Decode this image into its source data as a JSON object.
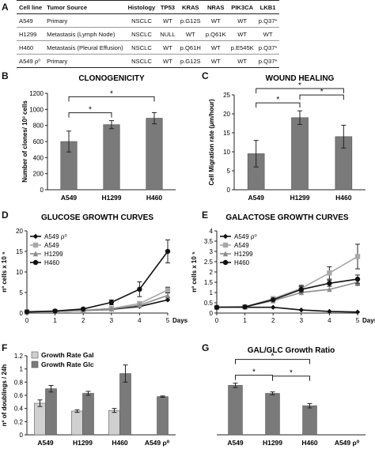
{
  "panels": {
    "A": "A",
    "B": "B",
    "C": "C",
    "D": "D",
    "E": "E",
    "F": "F",
    "G": "G"
  },
  "table": {
    "headers": [
      "Cell line",
      "Tumor Source",
      "Histology",
      "TP53",
      "KRAS",
      "NRAS",
      "PIK3CA",
      "LKB1"
    ],
    "rows": [
      {
        "line": "A549",
        "source": "Primary",
        "histology": "NSCLC",
        "tp53": "WT",
        "kras": "p.G12S",
        "nras": "WT",
        "pik3ca": "WT",
        "lkb1": "p.Q37*"
      },
      {
        "line": "H1299",
        "source": "Metastasis (Lymph Node)",
        "histology": "NSCLC",
        "tp53": "NULL",
        "kras": "WT",
        "nras": "p.Q61K",
        "pik3ca": "WT",
        "lkb1": "WT"
      },
      {
        "line": "H460",
        "source": "Metastasis (Pleural Effusion)",
        "histology": "NSCLC",
        "tp53": "WT",
        "kras": "p.Q61H",
        "nras": "WT",
        "pik3ca": "p.E545K",
        "lkb1": "p.Q37*"
      },
      {
        "line": "A549 ρ⁰",
        "source": "Primary",
        "histology": "NSCLC",
        "tp53": "WT",
        "kras": "p.G12S",
        "nras": "WT",
        "pik3ca": "WT",
        "lkb1": "p.Q37*"
      }
    ]
  },
  "colors": {
    "dark": "#7a7a7a",
    "light": "#d0d0d0",
    "black": "#111111",
    "grey_line": "#a8a8a8",
    "mid_line": "#8c8c8c"
  },
  "chart_data": [
    {
      "id": "B",
      "type": "bar",
      "title": "CLONOGENICITY",
      "ylabel": "Number of clones/ 10³ cells",
      "categories": [
        "A549",
        "H1299",
        "H460"
      ],
      "values": [
        600,
        810,
        890
      ],
      "errors": [
        130,
        50,
        70
      ],
      "ylim": [
        0,
        1200
      ],
      "yticks": [
        "0",
        "200",
        "400",
        "600",
        "800",
        "1000",
        "1200"
      ],
      "significance": [
        {
          "from": 0,
          "to": 1,
          "label": "*"
        },
        {
          "from": 0,
          "to": 2,
          "label": "*"
        }
      ]
    },
    {
      "id": "C",
      "type": "bar",
      "title": "WOUND HEALING",
      "ylabel": "Cell Migration rate (μm/hour)",
      "categories": [
        "A549",
        "H1299",
        "H460"
      ],
      "values": [
        9.5,
        19,
        14
      ],
      "errors": [
        3.5,
        1.8,
        3
      ],
      "ylim": [
        0,
        25
      ],
      "yticks": [
        "0",
        "5",
        "10",
        "15",
        "20",
        "25"
      ],
      "significance": [
        {
          "from": 0,
          "to": 1,
          "label": "*"
        },
        {
          "from": 1,
          "to": 2,
          "label": "*"
        },
        {
          "from": 0,
          "to": 2,
          "label": "*"
        }
      ]
    },
    {
      "id": "D",
      "type": "line",
      "title": "GLUCOSE GROWTH CURVES",
      "ylabel": "nº cells x 10 ⁵",
      "xlabel": "Days",
      "x": [
        0,
        1,
        2,
        3,
        4,
        5
      ],
      "xticks": [
        "0",
        "1",
        "2",
        "3",
        "4",
        "5"
      ],
      "ylim": [
        0,
        20
      ],
      "yticks": [
        "0",
        "5",
        "10",
        "15",
        "20"
      ],
      "legend": "top-left",
      "series": [
        {
          "name": "A549 ρ⁰",
          "marker": "diamond",
          "color": "#111111",
          "values": [
            0.3,
            0.4,
            0.6,
            0.9,
            1.6,
            3.2
          ],
          "errors": [
            0,
            0,
            0,
            0,
            0,
            0
          ]
        },
        {
          "name": "A549",
          "marker": "square",
          "color": "#a8a8a8",
          "values": [
            0.3,
            0.4,
            0.7,
            1.1,
            2.3,
            5.6
          ],
          "errors": [
            0,
            0,
            0,
            0,
            0.5,
            0.7
          ]
        },
        {
          "name": "H1299",
          "marker": "triangle",
          "color": "#8c8c8c",
          "values": [
            0.3,
            0.4,
            0.6,
            1.0,
            1.9,
            4.3
          ],
          "errors": [
            0,
            0,
            0,
            0,
            0,
            0.6
          ]
        },
        {
          "name": "H460",
          "marker": "circle",
          "color": "#111111",
          "values": [
            0.3,
            0.5,
            1.0,
            2.6,
            5.8,
            15
          ],
          "errors": [
            0,
            0,
            0,
            0.6,
            1.8,
            2.8
          ]
        }
      ]
    },
    {
      "id": "E",
      "type": "line",
      "title": "GALACTOSE GROWTH CURVES",
      "ylabel": "nº cells x 10 ⁵",
      "xlabel": "Days",
      "x": [
        0,
        1,
        2,
        3,
        4,
        5
      ],
      "xticks": [
        "0",
        "1",
        "2",
        "3",
        "4",
        "5"
      ],
      "ylim": [
        0,
        4
      ],
      "yticks": [
        "0",
        "0.5",
        "1",
        "1.5",
        "2",
        "2.5",
        "3",
        "3.5",
        "4"
      ],
      "legend": "top-left",
      "series": [
        {
          "name": "A549 ρ⁰",
          "marker": "diamond",
          "color": "#111111",
          "values": [
            0.28,
            0.28,
            0.28,
            0.15,
            0.08,
            0.05
          ],
          "errors": [
            0,
            0,
            0,
            0,
            0,
            0
          ]
        },
        {
          "name": "A549",
          "marker": "square",
          "color": "#a8a8a8",
          "values": [
            0.28,
            0.3,
            0.7,
            1.2,
            1.95,
            2.75
          ],
          "errors": [
            0,
            0,
            0.1,
            0.15,
            0.3,
            0.6
          ]
        },
        {
          "name": "H1299",
          "marker": "triangle",
          "color": "#8c8c8c",
          "values": [
            0.28,
            0.3,
            0.6,
            1.0,
            1.15,
            1.5
          ],
          "errors": [
            0,
            0,
            0,
            0,
            0,
            0.15
          ]
        },
        {
          "name": "H460",
          "marker": "circle",
          "color": "#111111",
          "values": [
            0.28,
            0.3,
            0.65,
            1.15,
            1.45,
            1.65
          ],
          "errors": [
            0,
            0,
            0,
            0.15,
            0.15,
            0.2
          ]
        }
      ]
    },
    {
      "id": "F",
      "type": "bar",
      "title": "",
      "ylabel": "nº of doublings / 24h",
      "categories": [
        "A549",
        "H1299",
        "H460",
        "A549 ρ⁰"
      ],
      "ylim": [
        0,
        1.2
      ],
      "yticks": [
        "0",
        "0.2",
        "0.4",
        "0.6",
        "0.8",
        "1",
        "1.2"
      ],
      "legend": "top-left",
      "series": [
        {
          "name": "Growth Rate Gal",
          "color": "#d0d0d0",
          "values": [
            0.48,
            0.36,
            0.37,
            0
          ],
          "errors": [
            0.05,
            0.02,
            0.03,
            0
          ]
        },
        {
          "name": "Growth Rate Glc",
          "color": "#7a7a7a",
          "values": [
            0.7,
            0.63,
            0.93,
            0.58
          ],
          "errors": [
            0.05,
            0.03,
            0.13,
            0.01
          ]
        }
      ]
    },
    {
      "id": "G",
      "type": "bar",
      "title": "GAL/GLC Growth Ratio",
      "categories": [
        "A549",
        "H1299",
        "H460",
        "A549 ρ⁰"
      ],
      "values": [
        0.68,
        0.57,
        0.4,
        0
      ],
      "errors": [
        0.03,
        0.02,
        0.03,
        0
      ],
      "ylim": [
        0,
        1
      ],
      "significance": [
        {
          "from": 0,
          "to": 1,
          "label": "*"
        },
        {
          "from": 1,
          "to": 2,
          "label": "*"
        },
        {
          "from": 0,
          "to": 2,
          "label": "*"
        }
      ]
    }
  ]
}
